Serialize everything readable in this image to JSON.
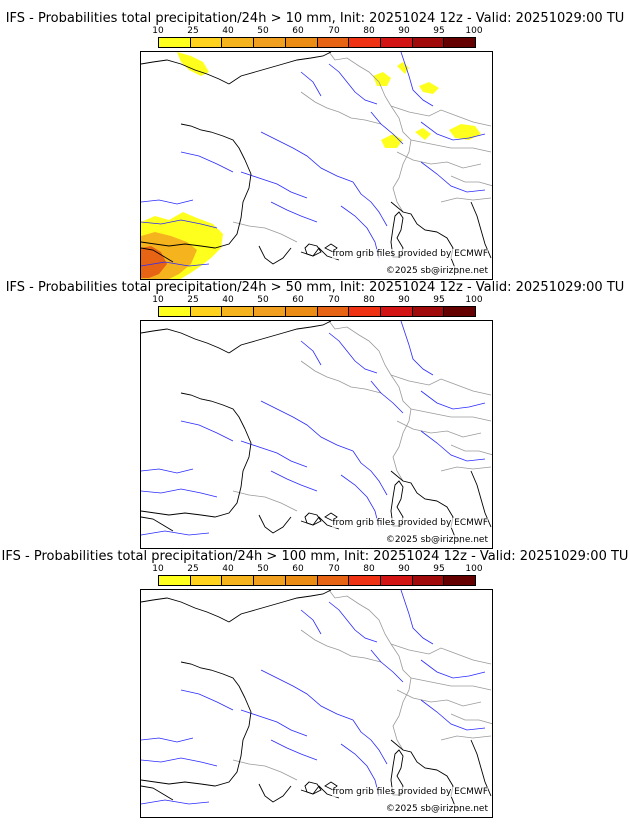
{
  "colorbar": {
    "ticks": [
      "10",
      "25",
      "40",
      "50",
      "60",
      "70",
      "80",
      "90",
      "95",
      "100"
    ],
    "colors": [
      "#ffff1e",
      "#ffd21e",
      "#f5b41e",
      "#f0a01e",
      "#eb8c14",
      "#e66414",
      "#f03214",
      "#d21414",
      "#a00a0a",
      "#640000"
    ]
  },
  "panels": [
    {
      "title": "IFS - Probabilities total precipitation/24h > 10 mm, Init: 20251024 12z - Valid: 20251029:00 TU",
      "has_rain": true
    },
    {
      "title": "IFS - Probabilities total precipitation/24h > 50 mm, Init: 20251024 12z - Valid: 20251029:00 TU",
      "has_rain": false
    },
    {
      "title": "IFS - Probabilities total precipitation/24h > 100 mm, Init: 20251024 12z - Valid: 20251029:00 TU",
      "has_rain": false
    }
  ],
  "credits": {
    "source": "from grib files provided by ECMWF",
    "copyright": "©2025 sb@irizpne.net"
  }
}
